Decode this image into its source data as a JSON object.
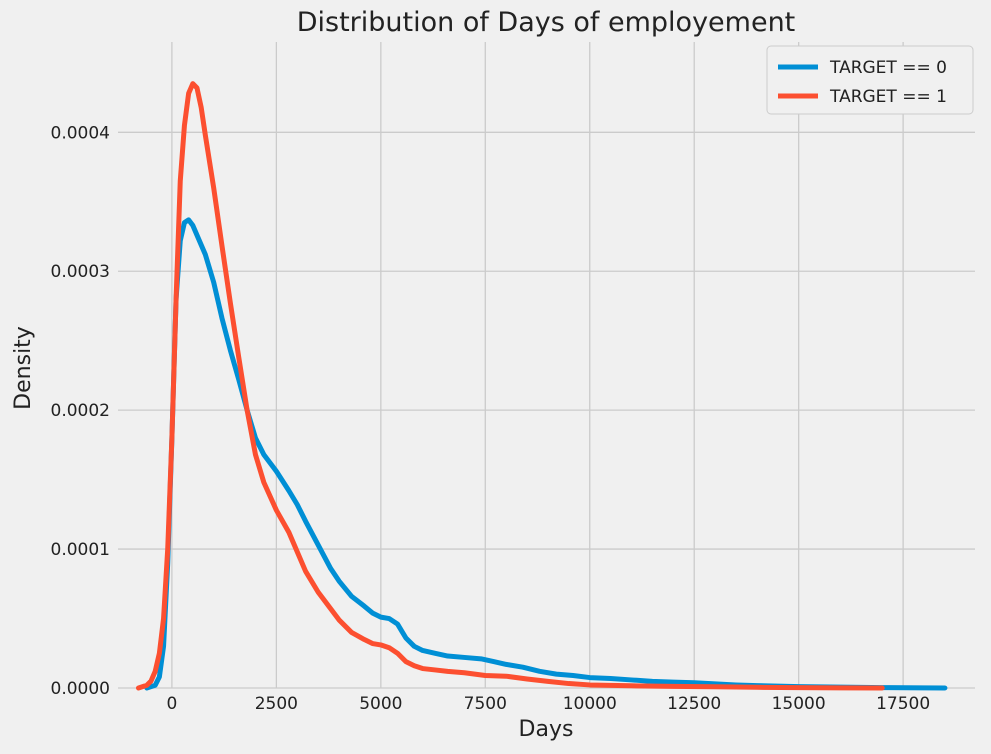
{
  "chart_data": {
    "type": "line",
    "title": "Distribution of Days of employement",
    "xlabel": "Days",
    "ylabel": "Density",
    "xlim": [
      -1290,
      19220
    ],
    "ylim": [
      0,
      0.000465
    ],
    "xticks": [
      0,
      2500,
      5000,
      7500,
      10000,
      12500,
      15000,
      17500
    ],
    "xtick_labels": [
      "0",
      "2500",
      "5000",
      "7500",
      "10000",
      "12500",
      "15000",
      "17500"
    ],
    "yticks": [
      0,
      0.0001,
      0.0002,
      0.0003,
      0.0004
    ],
    "ytick_labels": [
      "0.0000",
      "0.0001",
      "0.0002",
      "0.0003",
      "0.0004"
    ],
    "grid": true,
    "legend_position": "top-right",
    "series": [
      {
        "name": "TARGET == 0",
        "color": "#008fd5",
        "x": [
          -600,
          -400,
          -300,
          -200,
          -100,
          0,
          100,
          200,
          300,
          400,
          500,
          600,
          800,
          1000,
          1200,
          1400,
          1600,
          1800,
          2000,
          2200,
          2500,
          2800,
          3000,
          3200,
          3500,
          3800,
          4000,
          4300,
          4600,
          4800,
          5000,
          5200,
          5400,
          5500,
          5600,
          5800,
          6000,
          6300,
          6600,
          7000,
          7400,
          7700,
          8000,
          8400,
          8800,
          9200,
          9600,
          10000,
          10500,
          11000,
          11500,
          12000,
          12500,
          13000,
          13500,
          14000,
          15000,
          16000,
          17000,
          18000,
          18500
        ],
        "y": [
          0,
          2e-06,
          8e-06,
          3e-05,
          9e-05,
          0.00018,
          0.00028,
          0.000322,
          0.000335,
          0.000337,
          0.000333,
          0.000326,
          0.000312,
          0.000292,
          0.000266,
          0.000243,
          0.000222,
          0.0002,
          0.00018,
          0.000168,
          0.000156,
          0.000142,
          0.000132,
          0.00012,
          0.000103,
          8.6e-05,
          7.7e-05,
          6.6e-05,
          5.9e-05,
          5.4e-05,
          5.1e-05,
          5e-05,
          4.6e-05,
          4.1e-05,
          3.6e-05,
          3e-05,
          2.7e-05,
          2.5e-05,
          2.3e-05,
          2.2e-05,
          2.1e-05,
          1.9e-05,
          1.7e-05,
          1.5e-05,
          1.2e-05,
          1e-05,
          9e-06,
          7.5e-06,
          6.8e-06,
          5.8e-06,
          4.8e-06,
          4.2e-06,
          3.8e-06,
          3e-06,
          2.2e-06,
          1.7e-06,
          1e-06,
          6e-07,
          3e-07,
          1e-07,
          0
        ]
      },
      {
        "name": "TARGET == 1",
        "color": "#fc4f30",
        "x": [
          -800,
          -600,
          -500,
          -400,
          -300,
          -200,
          -100,
          0,
          100,
          200,
          300,
          400,
          500,
          600,
          700,
          800,
          1000,
          1200,
          1400,
          1600,
          1800,
          2000,
          2200,
          2500,
          2800,
          3000,
          3200,
          3500,
          3800,
          4000,
          4300,
          4600,
          4800,
          5000,
          5200,
          5400,
          5600,
          5800,
          6000,
          6300,
          6600,
          7000,
          7500,
          8000,
          8500,
          9000,
          9500,
          10000,
          11000,
          12000,
          13000,
          14000,
          15000,
          16000,
          17000
        ],
        "y": [
          0,
          2e-06,
          5e-06,
          1.2e-05,
          2.5e-05,
          5e-05,
          0.0001,
          0.00018,
          0.00028,
          0.000365,
          0.000405,
          0.000428,
          0.000435,
          0.000432,
          0.000418,
          0.000398,
          0.00036,
          0.000318,
          0.000277,
          0.000238,
          0.0002,
          0.000168,
          0.000148,
          0.000128,
          0.000112,
          9.8e-05,
          8.4e-05,
          6.9e-05,
          5.7e-05,
          4.9e-05,
          4e-05,
          3.5e-05,
          3.2e-05,
          3.1e-05,
          2.9e-05,
          2.5e-05,
          1.9e-05,
          1.6e-05,
          1.4e-05,
          1.3e-05,
          1.2e-05,
          1.1e-05,
          9e-06,
          8.5e-06,
          6.5e-06,
          4.8e-06,
          3.2e-06,
          2.2e-06,
          1.6e-06,
          1.2e-06,
          9e-07,
          5e-07,
          3e-07,
          1e-07,
          0
        ]
      }
    ]
  }
}
